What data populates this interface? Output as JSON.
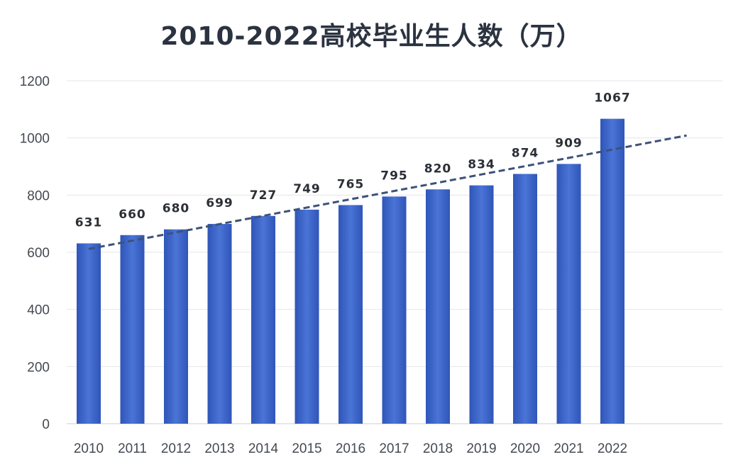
{
  "chart_data": {
    "type": "bar",
    "title": "2010-2022高校毕业生人数（万）",
    "categories": [
      "2010",
      "2011",
      "2012",
      "2013",
      "2014",
      "2015",
      "2016",
      "2017",
      "2018",
      "2019",
      "2020",
      "2021",
      "2022"
    ],
    "values": [
      631,
      660,
      680,
      699,
      727,
      749,
      765,
      795,
      820,
      834,
      874,
      909,
      1067
    ],
    "ylim": [
      0,
      1200
    ],
    "yticks": [
      0,
      200,
      400,
      600,
      800,
      1000,
      1200
    ],
    "grid": true,
    "trendline": "linear",
    "bar_color": "#3a63c8",
    "trend_color": "#3d5278"
  }
}
